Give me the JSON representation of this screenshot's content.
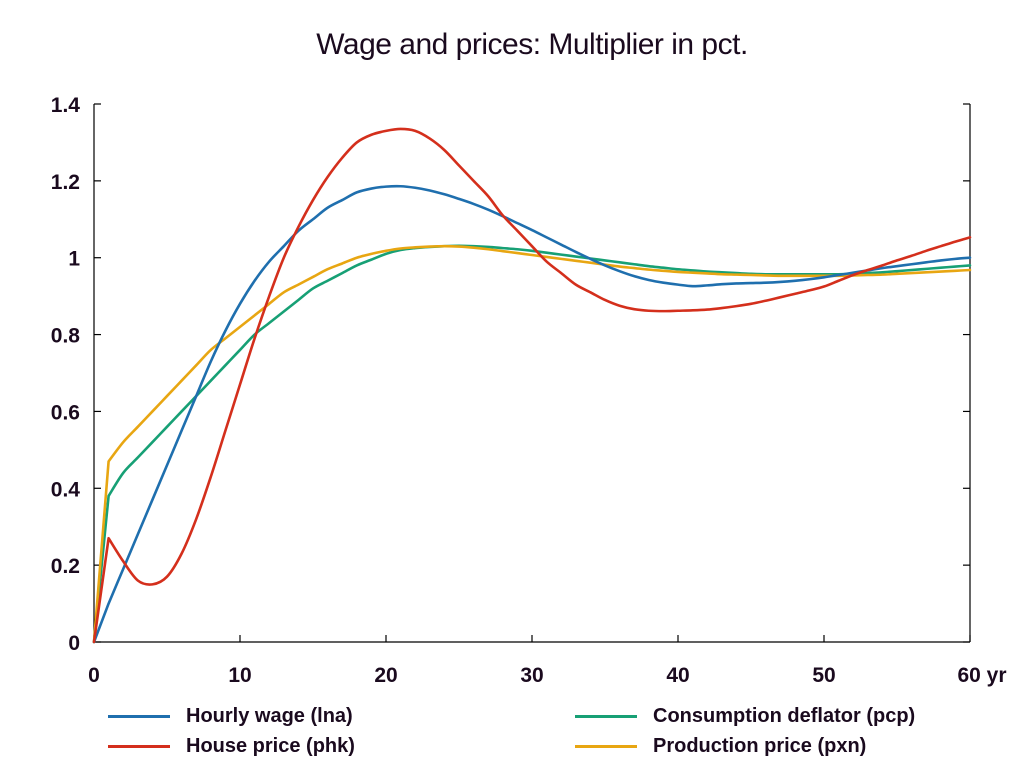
{
  "chart_data": {
    "type": "line",
    "title": "Wage and prices: Multiplier in pct.",
    "xlabel": "",
    "ylabel": "",
    "xlim": [
      0,
      60
    ],
    "ylim": [
      0,
      1.4
    ],
    "x_ticks": [
      "0",
      "10",
      "20",
      "30",
      "40",
      "50",
      "60 yr"
    ],
    "x_tick_values": [
      0,
      10,
      20,
      30,
      40,
      50,
      60
    ],
    "y_ticks": [
      "0",
      "0.2",
      "0.4",
      "0.6",
      "0.8",
      "1",
      "1.2",
      "1.4"
    ],
    "y_tick_values": [
      0,
      0.2,
      0.4,
      0.6,
      0.8,
      1.0,
      1.2,
      1.4
    ],
    "grid": false,
    "legend_position": "bottom",
    "series": [
      {
        "name": "Hourly wage (lna)",
        "color": "#1f6fae",
        "x": [
          0,
          1,
          2,
          3,
          4,
          5,
          6,
          7,
          8,
          9,
          10,
          11,
          12,
          13,
          14,
          15,
          16,
          17,
          18,
          19,
          20,
          21,
          22,
          23,
          24,
          25,
          26,
          27,
          28,
          29,
          30,
          31,
          32,
          33,
          34,
          35,
          36,
          37,
          38,
          39,
          40,
          41,
          42,
          43,
          44,
          45,
          46,
          47,
          48,
          49,
          50,
          51,
          52,
          53,
          54,
          55,
          56,
          57,
          58,
          59,
          60
        ],
        "y": [
          0,
          0.1,
          0.19,
          0.28,
          0.37,
          0.46,
          0.55,
          0.64,
          0.73,
          0.81,
          0.88,
          0.94,
          0.99,
          1.03,
          1.07,
          1.1,
          1.13,
          1.15,
          1.17,
          1.18,
          1.185,
          1.186,
          1.182,
          1.175,
          1.165,
          1.153,
          1.14,
          1.125,
          1.108,
          1.09,
          1.072,
          1.053,
          1.034,
          1.015,
          0.997,
          0.98,
          0.965,
          0.952,
          0.942,
          0.935,
          0.93,
          0.926,
          0.928,
          0.931,
          0.933,
          0.934,
          0.935,
          0.937,
          0.94,
          0.944,
          0.949,
          0.955,
          0.961,
          0.967,
          0.973,
          0.978,
          0.983,
          0.988,
          0.993,
          0.997,
          1.0
        ]
      },
      {
        "name": "House price (phk)",
        "color": "#d42f1c",
        "x": [
          0,
          1,
          2,
          3,
          4,
          5,
          6,
          7,
          8,
          9,
          10,
          11,
          12,
          13,
          14,
          15,
          16,
          17,
          18,
          19,
          20,
          21,
          22,
          23,
          24,
          25,
          26,
          27,
          28,
          29,
          30,
          31,
          32,
          33,
          34,
          35,
          36,
          37,
          38,
          39,
          40,
          41,
          42,
          43,
          44,
          45,
          46,
          47,
          48,
          49,
          50,
          51,
          52,
          53,
          54,
          55,
          56,
          57,
          58,
          59,
          60
        ],
        "y": [
          0,
          0.27,
          0.21,
          0.16,
          0.15,
          0.17,
          0.23,
          0.32,
          0.43,
          0.55,
          0.67,
          0.79,
          0.9,
          1.0,
          1.08,
          1.15,
          1.21,
          1.26,
          1.3,
          1.32,
          1.33,
          1.335,
          1.33,
          1.31,
          1.28,
          1.24,
          1.2,
          1.16,
          1.11,
          1.07,
          1.03,
          0.99,
          0.96,
          0.93,
          0.91,
          0.89,
          0.875,
          0.866,
          0.862,
          0.861,
          0.862,
          0.863,
          0.865,
          0.869,
          0.874,
          0.88,
          0.888,
          0.897,
          0.906,
          0.915,
          0.925,
          0.94,
          0.955,
          0.968,
          0.98,
          0.993,
          1.005,
          1.018,
          1.03,
          1.042,
          1.053
        ]
      },
      {
        "name": "Consumption deflator (pcp)",
        "color": "#17a075",
        "x": [
          0,
          1,
          2,
          3,
          4,
          5,
          6,
          7,
          8,
          9,
          10,
          11,
          12,
          13,
          14,
          15,
          16,
          17,
          18,
          19,
          20,
          21,
          22,
          23,
          24,
          25,
          26,
          27,
          28,
          29,
          30,
          31,
          32,
          33,
          34,
          35,
          36,
          37,
          38,
          39,
          40,
          41,
          42,
          43,
          44,
          45,
          46,
          47,
          48,
          49,
          50,
          51,
          52,
          53,
          54,
          55,
          56,
          57,
          58,
          59,
          60
        ],
        "y": [
          0,
          0.38,
          0.44,
          0.48,
          0.52,
          0.56,
          0.6,
          0.64,
          0.68,
          0.72,
          0.76,
          0.8,
          0.83,
          0.86,
          0.89,
          0.92,
          0.94,
          0.96,
          0.98,
          0.995,
          1.01,
          1.02,
          1.025,
          1.028,
          1.03,
          1.031,
          1.03,
          1.028,
          1.025,
          1.022,
          1.018,
          1.013,
          1.008,
          1.003,
          0.998,
          0.993,
          0.988,
          0.983,
          0.978,
          0.974,
          0.97,
          0.967,
          0.964,
          0.962,
          0.96,
          0.958,
          0.957,
          0.957,
          0.957,
          0.957,
          0.957,
          0.957,
          0.958,
          0.96,
          0.962,
          0.965,
          0.968,
          0.971,
          0.974,
          0.977,
          0.98
        ]
      },
      {
        "name": "Production price (pxn)",
        "color": "#e8a612",
        "x": [
          0,
          1,
          2,
          3,
          4,
          5,
          6,
          7,
          8,
          9,
          10,
          11,
          12,
          13,
          14,
          15,
          16,
          17,
          18,
          19,
          20,
          21,
          22,
          23,
          24,
          25,
          26,
          27,
          28,
          29,
          30,
          31,
          32,
          33,
          34,
          35,
          36,
          37,
          38,
          39,
          40,
          41,
          42,
          43,
          44,
          45,
          46,
          47,
          48,
          49,
          50,
          51,
          52,
          53,
          54,
          55,
          56,
          57,
          58,
          59,
          60
        ],
        "y": [
          0,
          0.47,
          0.52,
          0.56,
          0.6,
          0.64,
          0.68,
          0.72,
          0.76,
          0.79,
          0.82,
          0.85,
          0.88,
          0.91,
          0.93,
          0.95,
          0.97,
          0.985,
          1.0,
          1.01,
          1.018,
          1.024,
          1.027,
          1.029,
          1.03,
          1.029,
          1.026,
          1.022,
          1.017,
          1.012,
          1.007,
          1.002,
          0.997,
          0.992,
          0.987,
          0.982,
          0.977,
          0.973,
          0.969,
          0.966,
          0.963,
          0.961,
          0.959,
          0.957,
          0.956,
          0.955,
          0.954,
          0.953,
          0.953,
          0.953,
          0.953,
          0.953,
          0.954,
          0.955,
          0.956,
          0.958,
          0.96,
          0.962,
          0.964,
          0.966,
          0.968
        ]
      }
    ]
  },
  "legend": {
    "items": [
      {
        "label": "Hourly wage (lna)",
        "color": "#1f6fae"
      },
      {
        "label": "Consumption deflator (pcp)",
        "color": "#17a075"
      },
      {
        "label": "House price (phk)",
        "color": "#d42f1c"
      },
      {
        "label": "Production price (pxn)",
        "color": "#e8a612"
      }
    ]
  }
}
